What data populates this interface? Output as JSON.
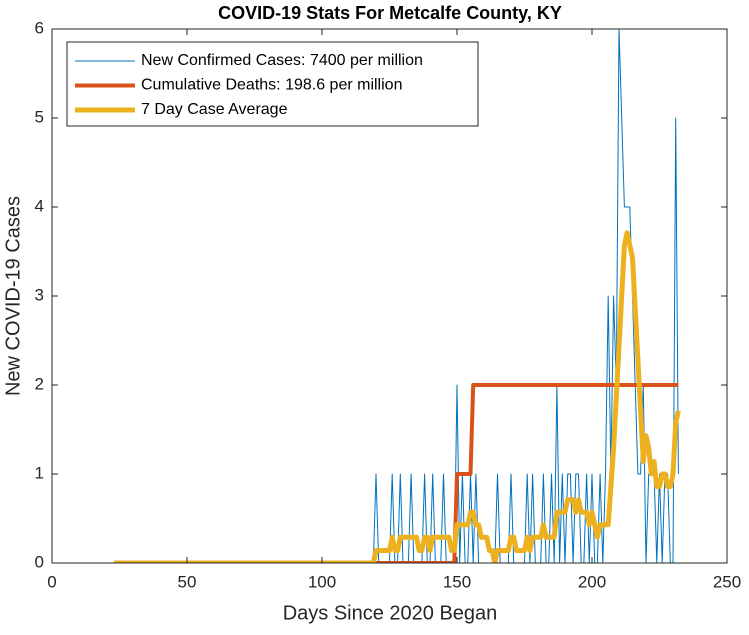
{
  "chart_data": {
    "type": "line",
    "title": "COVID-19 Stats For Metcalfe County, KY",
    "xlabel": "Days Since 2020 Began",
    "ylabel": "New COVID-19 Cases",
    "xlim": [
      0,
      250
    ],
    "xticks": [
      0,
      50,
      100,
      150,
      200,
      250
    ],
    "ylim": [
      0,
      6
    ],
    "yticks": [
      0,
      1,
      2,
      3,
      4,
      5,
      6
    ],
    "grid": false,
    "legend": "upper left",
    "x": [
      23,
      24,
      25,
      26,
      27,
      28,
      29,
      30,
      31,
      32,
      33,
      34,
      35,
      36,
      37,
      38,
      39,
      40,
      41,
      42,
      43,
      44,
      45,
      46,
      47,
      48,
      49,
      50,
      51,
      52,
      53,
      54,
      55,
      56,
      57,
      58,
      59,
      60,
      61,
      62,
      63,
      64,
      65,
      66,
      67,
      68,
      69,
      70,
      71,
      72,
      73,
      74,
      75,
      76,
      77,
      78,
      79,
      80,
      81,
      82,
      83,
      84,
      85,
      86,
      87,
      88,
      89,
      90,
      91,
      92,
      93,
      94,
      95,
      96,
      97,
      98,
      99,
      100,
      101,
      102,
      103,
      104,
      105,
      106,
      107,
      108,
      109,
      110,
      111,
      112,
      113,
      114,
      115,
      116,
      117,
      118,
      119,
      120,
      121,
      122,
      123,
      124,
      125,
      126,
      127,
      128,
      129,
      130,
      131,
      132,
      133,
      134,
      135,
      136,
      137,
      138,
      139,
      140,
      141,
      142,
      143,
      144,
      145,
      146,
      147,
      148,
      149,
      150,
      151,
      152,
      153,
      154,
      155,
      156,
      157,
      158,
      159,
      160,
      161,
      162,
      163,
      164,
      165,
      166,
      167,
      168,
      169,
      170,
      171,
      172,
      173,
      174,
      175,
      176,
      177,
      178,
      179,
      180,
      181,
      182,
      183,
      184,
      185,
      186,
      187,
      188,
      189,
      190,
      191,
      192,
      193,
      194,
      195,
      196,
      197,
      198,
      199,
      200,
      201,
      202,
      203,
      204,
      205,
      206,
      207,
      208,
      209,
      210,
      211,
      212,
      213,
      214,
      215,
      216,
      217,
      218,
      219,
      220,
      221,
      222,
      223,
      224,
      225,
      226,
      227,
      228,
      229,
      230,
      231,
      232
    ],
    "series": [
      {
        "name": "New Confirmed Cases: 7400 per million",
        "color": "#0072bd",
        "width": 1,
        "values": [
          0,
          0,
          0,
          0,
          0,
          0,
          0,
          0,
          0,
          0,
          0,
          0,
          0,
          0,
          0,
          0,
          0,
          0,
          0,
          0,
          0,
          0,
          0,
          0,
          0,
          0,
          0,
          0,
          0,
          0,
          0,
          0,
          0,
          0,
          0,
          0,
          0,
          0,
          0,
          0,
          0,
          0,
          0,
          0,
          0,
          0,
          0,
          0,
          0,
          0,
          0,
          0,
          0,
          0,
          0,
          0,
          0,
          0,
          0,
          0,
          0,
          0,
          0,
          0,
          0,
          0,
          0,
          0,
          0,
          0,
          0,
          0,
          0,
          0,
          0,
          0,
          0,
          0,
          0,
          0,
          0,
          0,
          0,
          0,
          0,
          0,
          0,
          0,
          0,
          0,
          0,
          0,
          0,
          0,
          0,
          0,
          0,
          1,
          0,
          0,
          0,
          0,
          0,
          1,
          0,
          0,
          1,
          0,
          0,
          0,
          1,
          0,
          0,
          0,
          0,
          1,
          0,
          0,
          1,
          0,
          0,
          0,
          1,
          0,
          0,
          0,
          0,
          2,
          0,
          1,
          0,
          0,
          1,
          0,
          1,
          0,
          0,
          0,
          0,
          0,
          0,
          0,
          1,
          0,
          0,
          0,
          0,
          1,
          0,
          0,
          0,
          0,
          0,
          1,
          0,
          1,
          0,
          0,
          0,
          1,
          0,
          0,
          1,
          0,
          2,
          0,
          1,
          0,
          1,
          1,
          0,
          1,
          1,
          0,
          0,
          1,
          0,
          1,
          0,
          0,
          1,
          0,
          1,
          3,
          1,
          3,
          2,
          6,
          5,
          4,
          4,
          4,
          3,
          2,
          1,
          1,
          2,
          0,
          1,
          1,
          1,
          0,
          1,
          0,
          1,
          1,
          0,
          0,
          5,
          1
        ]
      },
      {
        "name": "Cumulative Deaths: 198.6 per million",
        "color": "#d95319",
        "width": 4,
        "values": [
          0,
          0,
          0,
          0,
          0,
          0,
          0,
          0,
          0,
          0,
          0,
          0,
          0,
          0,
          0,
          0,
          0,
          0,
          0,
          0,
          0,
          0,
          0,
          0,
          0,
          0,
          0,
          0,
          0,
          0,
          0,
          0,
          0,
          0,
          0,
          0,
          0,
          0,
          0,
          0,
          0,
          0,
          0,
          0,
          0,
          0,
          0,
          0,
          0,
          0,
          0,
          0,
          0,
          0,
          0,
          0,
          0,
          0,
          0,
          0,
          0,
          0,
          0,
          0,
          0,
          0,
          0,
          0,
          0,
          0,
          0,
          0,
          0,
          0,
          0,
          0,
          0,
          0,
          0,
          0,
          0,
          0,
          0,
          0,
          0,
          0,
          0,
          0,
          0,
          0,
          0,
          0,
          0,
          0,
          0,
          0,
          0,
          0,
          0,
          0,
          0,
          0,
          0,
          0,
          0,
          0,
          0,
          0,
          0,
          0,
          0,
          0,
          0,
          0,
          0,
          0,
          0,
          0,
          0,
          0,
          0,
          0,
          0,
          0,
          0,
          0,
          0,
          1,
          1,
          1,
          1,
          1,
          1,
          2,
          2,
          2,
          2,
          2,
          2,
          2,
          2,
          2,
          2,
          2,
          2,
          2,
          2,
          2,
          2,
          2,
          2,
          2,
          2,
          2,
          2,
          2,
          2,
          2,
          2,
          2,
          2,
          2,
          2,
          2,
          2,
          2,
          2,
          2,
          2,
          2,
          2,
          2,
          2,
          2,
          2,
          2,
          2,
          2,
          2,
          2,
          2,
          2,
          2,
          2,
          2,
          2,
          2,
          2,
          2,
          2,
          2,
          2,
          2,
          2,
          2,
          2,
          2,
          2,
          2,
          2,
          2,
          2,
          2,
          2,
          2,
          2,
          2,
          2,
          2,
          2
        ]
      },
      {
        "name": "7 Day Case Average",
        "color": "#edb120",
        "width": 5,
        "values": [
          0,
          0,
          0,
          0,
          0,
          0,
          0,
          0,
          0,
          0,
          0,
          0,
          0,
          0,
          0,
          0,
          0,
          0,
          0,
          0,
          0,
          0,
          0,
          0,
          0,
          0,
          0,
          0,
          0,
          0,
          0,
          0,
          0,
          0,
          0,
          0,
          0,
          0,
          0,
          0,
          0,
          0,
          0,
          0,
          0,
          0,
          0,
          0,
          0,
          0,
          0,
          0,
          0,
          0,
          0,
          0,
          0,
          0,
          0,
          0,
          0,
          0,
          0,
          0,
          0,
          0,
          0,
          0,
          0,
          0,
          0,
          0,
          0,
          0,
          0,
          0,
          0,
          0,
          0,
          0,
          0,
          0,
          0,
          0,
          0,
          0,
          0,
          0,
          0,
          0,
          0,
          0,
          0,
          0,
          0,
          0,
          0,
          0.14,
          0.14,
          0.14,
          0.14,
          0.14,
          0.14,
          0.29,
          0.14,
          0.14,
          0.29,
          0.29,
          0.29,
          0.29,
          0.29,
          0.29,
          0.29,
          0.14,
          0.14,
          0.29,
          0.29,
          0.14,
          0.29,
          0.29,
          0.29,
          0.29,
          0.29,
          0.29,
          0.29,
          0.14,
          0.14,
          0.43,
          0.43,
          0.43,
          0.43,
          0.43,
          0.57,
          0.57,
          0.43,
          0.43,
          0.29,
          0.29,
          0.29,
          0.14,
          0.14,
          0,
          0.14,
          0.14,
          0.14,
          0.14,
          0.14,
          0.29,
          0.29,
          0.14,
          0.14,
          0.14,
          0.14,
          0.29,
          0.14,
          0.29,
          0.29,
          0.29,
          0.29,
          0.43,
          0.29,
          0.29,
          0.29,
          0.29,
          0.57,
          0.57,
          0.57,
          0.57,
          0.71,
          0.71,
          0.71,
          0.57,
          0.71,
          0.57,
          0.57,
          0.57,
          0.43,
          0.57,
          0.43,
          0.29,
          0.43,
          0.43,
          0.43,
          0.43,
          0.86,
          1.29,
          1.86,
          2.43,
          3.0,
          3.57,
          3.71,
          3.57,
          3.43,
          2.86,
          2.29,
          1.71,
          1.14,
          1.43,
          1.29,
          1.0,
          1.14,
          0.86,
          0.86,
          1.0,
          1.0,
          0.86,
          0.86,
          1.0,
          1.57,
          1.71
        ]
      }
    ]
  }
}
